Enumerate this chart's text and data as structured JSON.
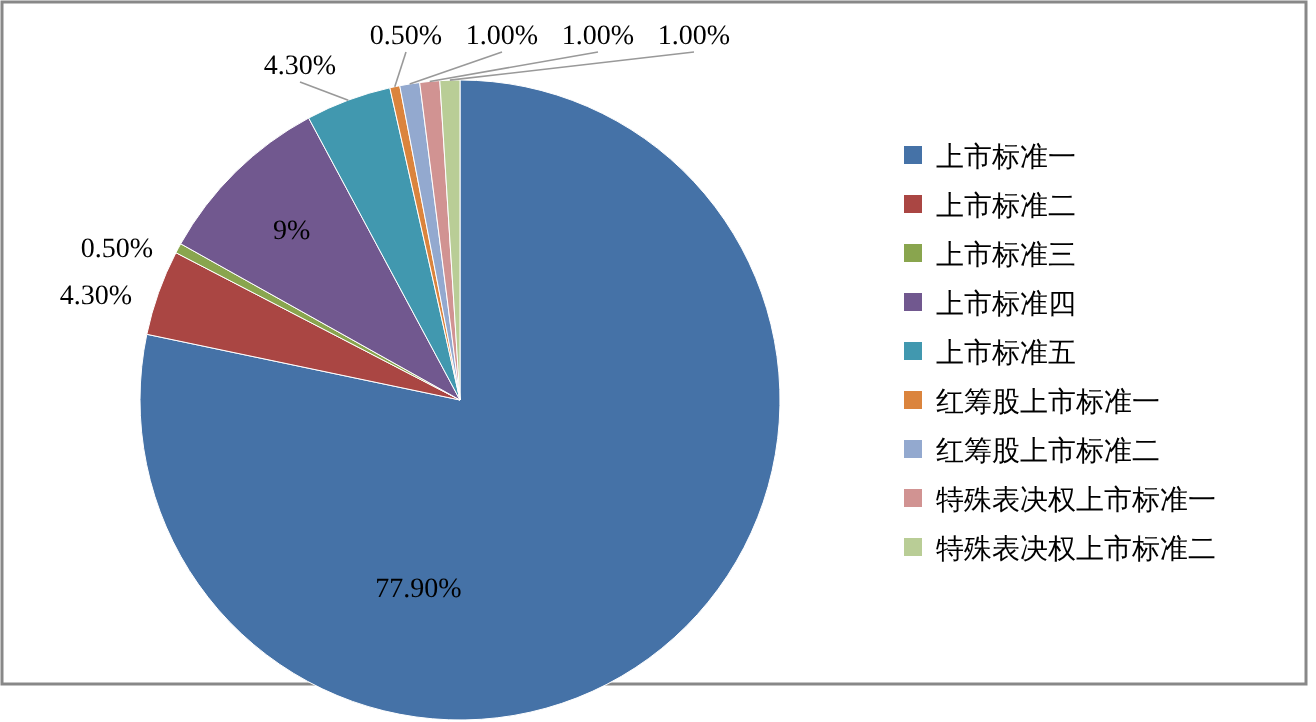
{
  "chart_data": {
    "type": "pie",
    "categories": [
      "上市标准一",
      "上市标准二",
      "上市标准三",
      "上市标准四",
      "上市标准五",
      "红筹股上市标准一",
      "红筹股上市标准二",
      "特殊表决权上市标准一",
      "特殊表决权上市标准二"
    ],
    "values": [
      77.9,
      4.3,
      0.5,
      9,
      4.3,
      0.5,
      1,
      1,
      1
    ],
    "colors": [
      "#4572a7",
      "#aa4643",
      "#89a54e",
      "#71588f",
      "#4198af",
      "#db843d",
      "#93a9cf",
      "#d19392",
      "#b9cd96"
    ],
    "value_labels": [
      "77.90%",
      "4.30%",
      "0.50%",
      "9%",
      "4.30%",
      "0.50%",
      "1.00%",
      "1.00%",
      "1.00%"
    ],
    "legend": "right"
  }
}
